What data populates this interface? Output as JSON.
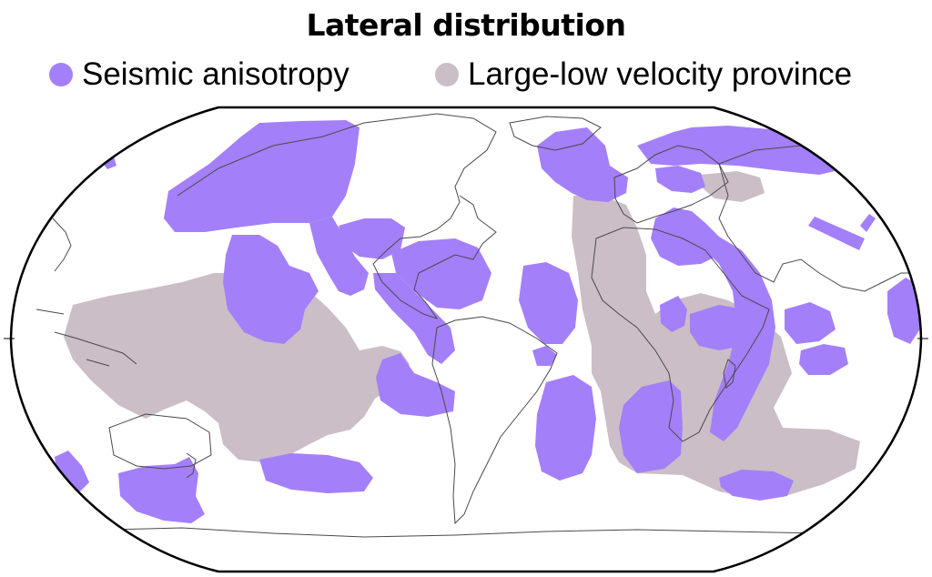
{
  "title": "Lateral distribution",
  "legend": [
    {
      "label": "Seismic anisotropy",
      "color": "#a47ffa"
    },
    {
      "label": "Large-low velocity province",
      "color": "#cbbec6"
    }
  ],
  "map": {
    "projection": "robinson",
    "ocean_color": "#ffffff",
    "coastline_color": "#4a4a4a",
    "border_color": "#000000"
  }
}
